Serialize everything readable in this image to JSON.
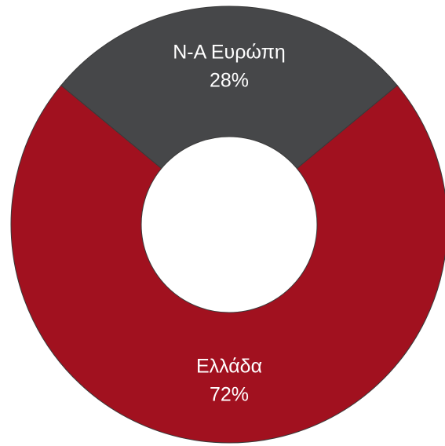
{
  "chart_data": {
    "type": "pie",
    "subtype": "donut",
    "title": "",
    "slices": [
      {
        "label": "Ελλάδα",
        "value": 72,
        "value_label": "72%",
        "color": "#A1111F"
      },
      {
        "label": "Ν-Α Ευρώπη",
        "value": 28,
        "value_label": "28%",
        "color": "#464749"
      }
    ],
    "legend": "none",
    "border_color": "#3a3a3a"
  }
}
